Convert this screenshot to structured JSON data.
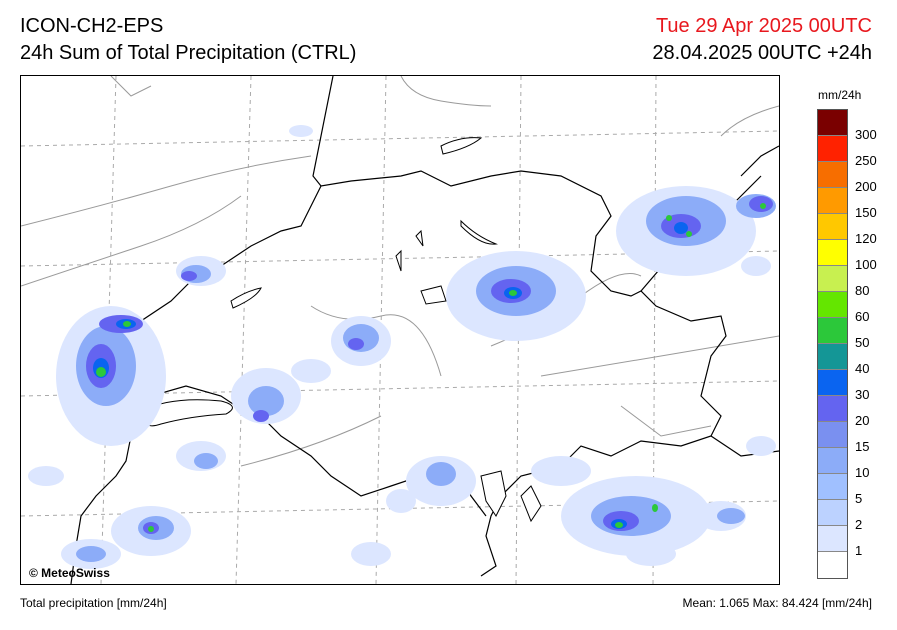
{
  "header": {
    "model": "ICON-CH2-EPS",
    "field": "24h Sum of Total Precipitation (CTRL)",
    "valid_time": "Tue 29 Apr 2025 00UTC",
    "run_info": "28.04.2025 00UTC +24h"
  },
  "colors": {
    "valid_time": "#e8181e"
  },
  "map": {
    "copyright": "© MeteoSwiss"
  },
  "legend": {
    "unit": "mm/24h",
    "levels": [
      {
        "label": "300",
        "color": "#7a0000"
      },
      {
        "label": "250",
        "color": "#ff2200"
      },
      {
        "label": "200",
        "color": "#f76e00"
      },
      {
        "label": "150",
        "color": "#ff9a00"
      },
      {
        "label": "120",
        "color": "#ffc800"
      },
      {
        "label": "100",
        "color": "#ffff00"
      },
      {
        "label": "80",
        "color": "#c8f050"
      },
      {
        "label": "60",
        "color": "#64e600"
      },
      {
        "label": "50",
        "color": "#2cc83a"
      },
      {
        "label": "40",
        "color": "#149696"
      },
      {
        "label": "30",
        "color": "#0a64f0"
      },
      {
        "label": "20",
        "color": "#6464f0"
      },
      {
        "label": "15",
        "color": "#7a90f0"
      },
      {
        "label": "10",
        "color": "#8cacf8"
      },
      {
        "label": "5",
        "color": "#a0c0ff"
      },
      {
        "label": "2",
        "color": "#bcd2ff"
      },
      {
        "label": "1",
        "color": "#dce6ff"
      },
      {
        "label": "",
        "color": "#ffffff"
      }
    ]
  },
  "footer": {
    "variable": "Total precipitation [mm/24h]",
    "stats": "Mean:   1.065 Max:  84.424 [mm/24h]"
  }
}
